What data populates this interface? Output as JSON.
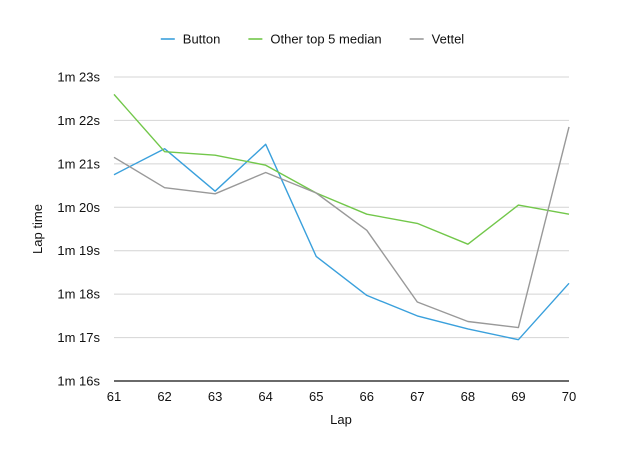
{
  "chart_data": {
    "type": "line",
    "title": "",
    "xlabel": "Lap",
    "ylabel": "Lap time",
    "x": [
      61,
      62,
      63,
      64,
      65,
      66,
      67,
      68,
      69,
      70
    ],
    "y_ticks": [
      76,
      77,
      78,
      79,
      80,
      81,
      82,
      83
    ],
    "y_tick_labels": [
      "1m 16s",
      "1m 17s",
      "1m 18s",
      "1m 19s",
      "1m 20s",
      "1m 21s",
      "1m 22s",
      "1m 23s"
    ],
    "ylim": [
      76,
      83
    ],
    "grid": true,
    "legend_position": "top",
    "series": [
      {
        "name": "Button",
        "color": "#3aa0dc",
        "values": [
          80.75,
          81.35,
          80.37,
          81.45,
          78.87,
          77.97,
          77.5,
          77.2,
          76.95,
          78.25
        ]
      },
      {
        "name": "Other top 5 median",
        "color": "#72c74a",
        "values": [
          82.6,
          81.28,
          81.2,
          80.97,
          80.33,
          79.84,
          79.63,
          79.15,
          80.05,
          79.84
        ]
      },
      {
        "name": "Vettel",
        "color": "#999999",
        "values": [
          81.15,
          80.45,
          80.31,
          80.8,
          80.33,
          79.47,
          77.82,
          77.37,
          77.23,
          81.85
        ]
      }
    ]
  }
}
